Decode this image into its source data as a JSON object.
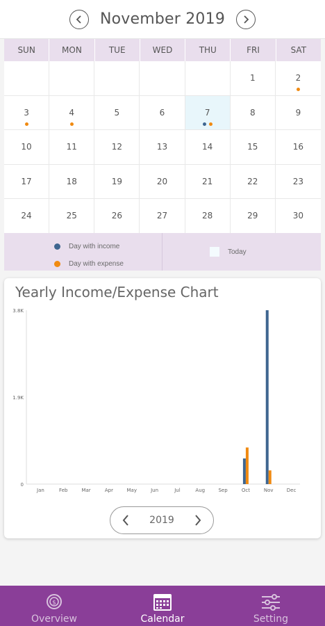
{
  "header": {
    "month_title": "November 2019"
  },
  "weekdays": [
    "SUN",
    "MON",
    "TUE",
    "WED",
    "THU",
    "FRI",
    "SAT"
  ],
  "calendar": {
    "today": 7,
    "weeks": [
      [
        null,
        null,
        null,
        null,
        null,
        1,
        2
      ],
      [
        3,
        4,
        5,
        6,
        7,
        8,
        9
      ],
      [
        10,
        11,
        12,
        13,
        14,
        15,
        16
      ],
      [
        17,
        18,
        19,
        20,
        21,
        22,
        23
      ],
      [
        24,
        25,
        26,
        27,
        28,
        29,
        30
      ]
    ],
    "income_days": [
      7
    ],
    "expense_days": [
      2,
      3,
      4,
      7
    ]
  },
  "legend": {
    "income_label": "Day with income",
    "expense_label": "Day with expense",
    "today_label": "Today"
  },
  "colors": {
    "income": "#3f6690",
    "expense": "#f08a11",
    "accent": "#8a3e98",
    "weekday_bg": "#e9deed"
  },
  "chart": {
    "title": "Yearly Income/Expense Chart",
    "year": "2019"
  },
  "chart_data": {
    "type": "bar",
    "categories": [
      "Jan",
      "Feb",
      "Mar",
      "Apr",
      "May",
      "Jun",
      "Jul",
      "Aug",
      "Sep",
      "Oct",
      "Nov",
      "Dec"
    ],
    "series": [
      {
        "values": [
          0,
          0,
          0,
          0,
          0,
          0,
          0,
          0,
          0,
          560,
          3800,
          0
        ]
      },
      {
        "values": [
          0,
          0,
          0,
          0,
          0,
          0,
          0,
          0,
          0,
          800,
          300,
          0
        ]
      }
    ],
    "y_ticks": [
      "0",
      "1.9K",
      "3.8K"
    ],
    "ylim": [
      0,
      3800
    ],
    "grid": false,
    "legend": "none"
  },
  "bottom_nav": [
    {
      "label": "Overview",
      "icon": "dollar-cycle-icon"
    },
    {
      "label": "Calendar",
      "icon": "calendar-icon"
    },
    {
      "label": "Setting",
      "icon": "sliders-icon"
    }
  ]
}
